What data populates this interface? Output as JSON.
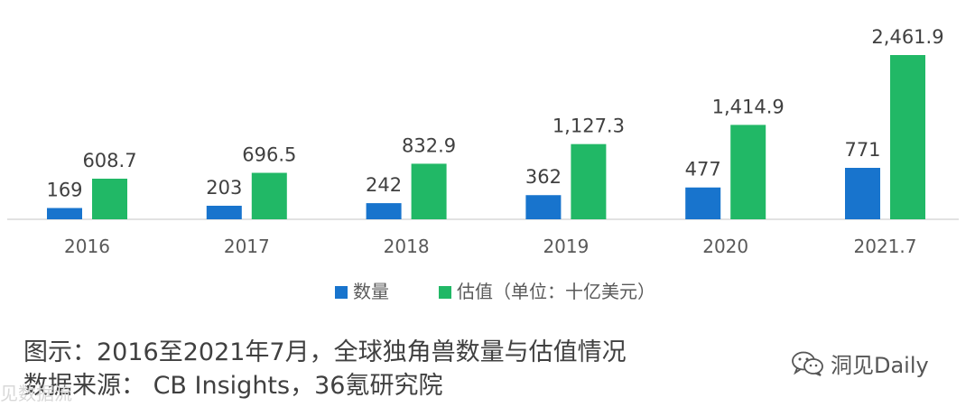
{
  "chart_data": {
    "type": "bar",
    "categories": [
      "2016",
      "2017",
      "2018",
      "2019",
      "2020",
      "2021.7"
    ],
    "series": [
      {
        "name": "数量",
        "color": "#1874CD",
        "values": [
          169,
          203,
          242,
          362,
          477,
          771
        ],
        "labels": [
          "169",
          "203",
          "242",
          "362",
          "477",
          "771"
        ]
      },
      {
        "name": "估值（单位：十亿美元）",
        "color": "#21B866",
        "values": [
          608.7,
          696.5,
          832.9,
          1127.3,
          1414.9,
          2461.9
        ],
        "labels": [
          "608.7",
          "696.5",
          "832.9",
          "1,127.3",
          "1,414.9",
          "2,461.9"
        ]
      }
    ],
    "ylim": [
      0,
      2461.9
    ],
    "grid": false,
    "legend": "bottom"
  },
  "caption": {
    "line1": "图示：2016至2021年7月，全球独角兽数量与估值情况",
    "line2": "数据来源：  CB Insights，36氪研究院"
  },
  "watermark": {
    "text": "洞见Daily",
    "icon": "wechat-icon"
  },
  "faint_mark": {
    "text": "见数据流"
  }
}
